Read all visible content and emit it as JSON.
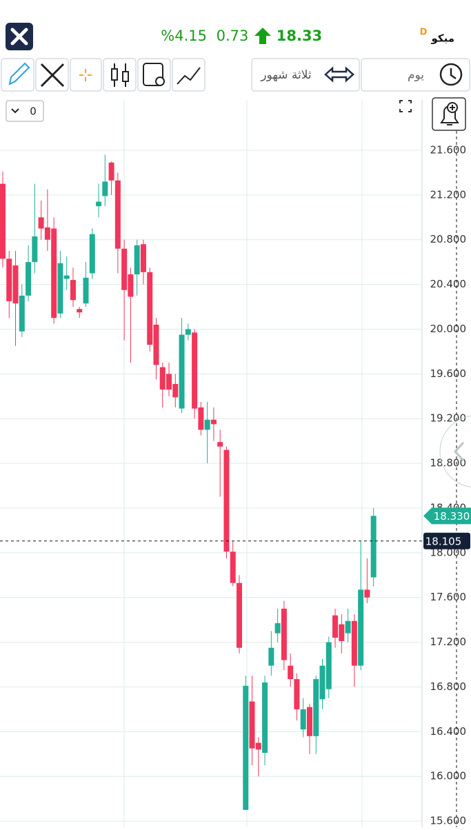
{
  "header": {
    "symbol": "مبكو",
    "badge": "D",
    "price": "18.33",
    "change": "0.73",
    "percent": "%4.15"
  },
  "toolbar": {
    "period": "ثلاثة شهور",
    "interval": "يوم",
    "counter": "0"
  },
  "chart_data": {
    "type": "candlestick",
    "up_color": "#1fae95",
    "down_color": "#f2355a",
    "ylim": [
      15.545,
      22.05
    ],
    "yticks": [
      {
        "value": 15.6,
        "label": "15.600"
      },
      {
        "value": 16.0,
        "label": "16.000"
      },
      {
        "value": 16.4,
        "label": "16.400"
      },
      {
        "value": 16.8,
        "label": "16.800"
      },
      {
        "value": 17.2,
        "label": "17.200"
      },
      {
        "value": 17.6,
        "label": "17.600"
      },
      {
        "value": 18.0,
        "label": "18.000"
      },
      {
        "value": 18.4,
        "label": "18.400"
      },
      {
        "value": 18.8,
        "label": "18.800"
      },
      {
        "value": 19.2,
        "label": "19.200"
      },
      {
        "value": 19.6,
        "label": "19.600"
      },
      {
        "value": 20.0,
        "label": "20.000"
      },
      {
        "value": 20.4,
        "label": "20.400"
      },
      {
        "value": 20.8,
        "label": "20.800"
      },
      {
        "value": 21.2,
        "label": "21.200"
      },
      {
        "value": 21.6,
        "label": "21.600"
      }
    ],
    "grid": true,
    "open": [
      21.3,
      20.63,
      20.57,
      19.98,
      20.3,
      20.6,
      21.0,
      20.91,
      20.9,
      20.14,
      20.45,
      20.44,
      20.18,
      20.23,
      20.5,
      21.1,
      21.19,
      21.49,
      21.33,
      20.72,
      20.49,
      20.49,
      20.76,
      20.51,
      20.04,
      19.66,
      19.6,
      19.51,
      19.29,
      19.95,
      19.97,
      19.3,
      19.1,
      19.19,
      18.99,
      18.92,
      18.01,
      17.73,
      15.7,
      16.67,
      16.3,
      16.21,
      16.99,
      17.28,
      17.5,
      16.99,
      16.87,
      16.42,
      16.62,
      16.36,
      16.69,
      16.78,
      17.44,
      17.36,
      17.28,
      17.39,
      16.99,
      17.67,
      17.78
    ],
    "high": [
      21.41,
      20.7,
      20.7,
      20.4,
      20.75,
      21.3,
      21.15,
      21.25,
      21.0,
      20.7,
      20.65,
      20.55,
      20.2,
      20.6,
      20.9,
      21.3,
      21.56,
      21.5,
      21.4,
      20.8,
      20.55,
      20.8,
      20.8,
      20.55,
      20.1,
      19.7,
      19.7,
      19.6,
      20.1,
      20.05,
      20.0,
      19.35,
      19.35,
      19.3,
      19.1,
      18.95,
      18.1,
      17.8,
      16.9,
      16.9,
      16.35,
      16.9,
      17.3,
      17.5,
      17.57,
      17.1,
      16.92,
      16.7,
      16.65,
      16.9,
      17.05,
      17.25,
      17.5,
      17.45,
      17.5,
      17.45,
      18.1,
      17.95,
      18.4
    ],
    "low": [
      20.55,
      20.1,
      19.85,
      19.93,
      20.25,
      20.5,
      20.8,
      20.7,
      20.05,
      20.1,
      20.35,
      20.2,
      20.1,
      20.2,
      20.45,
      21.0,
      21.1,
      21.2,
      20.5,
      19.9,
      19.7,
      20.3,
      20.4,
      19.8,
      19.55,
      19.3,
      19.4,
      19.3,
      19.25,
      19.9,
      19.2,
      19.05,
      18.8,
      19.0,
      18.5,
      17.95,
      17.7,
      17.1,
      15.7,
      16.1,
      16.0,
      16.1,
      16.9,
      17.2,
      16.95,
      16.8,
      16.5,
      16.35,
      16.2,
      16.2,
      16.6,
      16.7,
      17.15,
      17.1,
      17.2,
      16.8,
      16.95,
      17.55,
      17.7
    ],
    "close": [
      20.63,
      20.25,
      20.23,
      20.3,
      20.6,
      20.83,
      20.9,
      20.8,
      20.1,
      20.59,
      20.48,
      20.26,
      20.15,
      20.46,
      20.85,
      21.14,
      21.32,
      21.33,
      20.72,
      20.35,
      20.29,
      20.75,
      20.51,
      19.86,
      19.68,
      19.46,
      19.46,
      19.39,
      19.95,
      20.0,
      19.29,
      19.1,
      19.19,
      19.15,
      18.95,
      18.01,
      17.73,
      17.15,
      16.81,
      16.25,
      16.24,
      16.84,
      17.15,
      17.37,
      17.04,
      16.87,
      16.6,
      16.6,
      16.36,
      16.87,
      16.99,
      17.2,
      17.24,
      17.21,
      17.39,
      16.99,
      17.67,
      17.6,
      18.33
    ],
    "last_price": {
      "value": 18.33,
      "label": "18.330"
    },
    "crosshair": {
      "value": 18.105,
      "label": "18.105"
    }
  }
}
